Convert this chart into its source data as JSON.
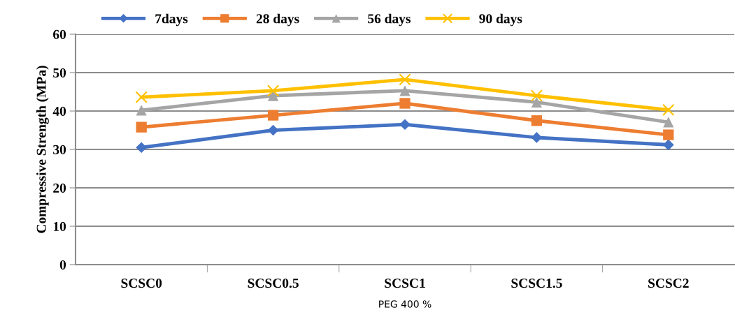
{
  "chart_data": {
    "type": "line",
    "xlabel": "PEG 400 %",
    "ylabel": "Compressive Strength (MPa)",
    "categories": [
      "SCSC0",
      "SCSC0.5",
      "SCSC1",
      "SCSC1.5",
      "SCSC2"
    ],
    "series": [
      {
        "name": "7days",
        "color": "#4472c4",
        "marker": "diamond",
        "values": [
          30.5,
          35,
          36.5,
          33.1,
          31.2
        ]
      },
      {
        "name": "28 days",
        "color": "#ed7d31",
        "marker": "square",
        "values": [
          35.8,
          38.9,
          42,
          37.5,
          33.8
        ]
      },
      {
        "name": "56 days",
        "color": "#a5a5a5",
        "marker": "triangle",
        "values": [
          40.2,
          44,
          45.3,
          42.3,
          37.1
        ]
      },
      {
        "name": "90 days",
        "color": "#ffc000",
        "marker": "cross",
        "values": [
          43.6,
          45.3,
          48.2,
          44,
          40.3
        ]
      }
    ],
    "ylim": [
      0,
      60
    ],
    "yticks": [
      0,
      10,
      20,
      30,
      40,
      50,
      60
    ],
    "grid": "y",
    "legend": "top",
    "line_style": "solid"
  }
}
